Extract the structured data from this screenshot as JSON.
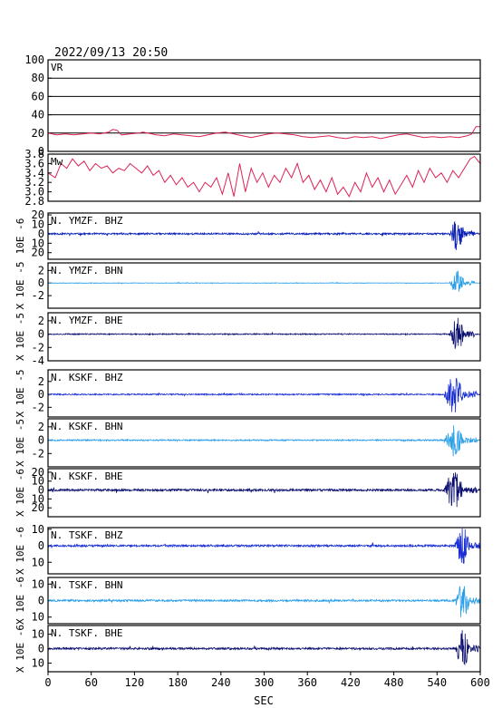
{
  "title": "2022/09/13 20:50",
  "xlabel": "SEC",
  "chart_data": {
    "type": "line",
    "xlim": [
      0,
      600
    ],
    "xticks": [
      0,
      60,
      120,
      180,
      240,
      300,
      360,
      420,
      480,
      540,
      600
    ],
    "panels": [
      {
        "id": "vr",
        "kind": "metric",
        "label": "VR",
        "ylabel": "",
        "ylim": [
          0,
          100
        ],
        "yticks": [
          0,
          20,
          40,
          60,
          80,
          100
        ],
        "grid": true,
        "color": "#dd2255",
        "series": [
          [
            0,
            20
          ],
          [
            12,
            18
          ],
          [
            24,
            19
          ],
          [
            36,
            18
          ],
          [
            48,
            19
          ],
          [
            60,
            20
          ],
          [
            72,
            19
          ],
          [
            84,
            21
          ],
          [
            90,
            24
          ],
          [
            96,
            23
          ],
          [
            102,
            18
          ],
          [
            114,
            19
          ],
          [
            126,
            20
          ],
          [
            132,
            21
          ],
          [
            138,
            20
          ],
          [
            150,
            18
          ],
          [
            162,
            17
          ],
          [
            174,
            19
          ],
          [
            186,
            18
          ],
          [
            198,
            17
          ],
          [
            210,
            16
          ],
          [
            222,
            18
          ],
          [
            234,
            20
          ],
          [
            246,
            21
          ],
          [
            258,
            19
          ],
          [
            270,
            17
          ],
          [
            282,
            15
          ],
          [
            294,
            17
          ],
          [
            306,
            19
          ],
          [
            318,
            20
          ],
          [
            330,
            19
          ],
          [
            342,
            18
          ],
          [
            354,
            16
          ],
          [
            366,
            15
          ],
          [
            378,
            16
          ],
          [
            390,
            17
          ],
          [
            402,
            15
          ],
          [
            414,
            14
          ],
          [
            426,
            16
          ],
          [
            438,
            15
          ],
          [
            450,
            16
          ],
          [
            462,
            14
          ],
          [
            474,
            16
          ],
          [
            486,
            18
          ],
          [
            498,
            19
          ],
          [
            510,
            17
          ],
          [
            522,
            15
          ],
          [
            534,
            16
          ],
          [
            546,
            15
          ],
          [
            558,
            16
          ],
          [
            570,
            15
          ],
          [
            582,
            17
          ],
          [
            588,
            19
          ],
          [
            594,
            27
          ],
          [
            600,
            27
          ]
        ]
      },
      {
        "id": "mw",
        "kind": "metric",
        "label": "Mw",
        "ylabel": "",
        "ylim": [
          2.8,
          3.8
        ],
        "yticks": [
          2.8,
          3.0,
          3.2,
          3.4,
          3.6,
          3.8
        ],
        "grid": false,
        "color": "#dd2255",
        "series": [
          [
            0,
            3.4
          ],
          [
            10,
            3.3
          ],
          [
            18,
            3.6
          ],
          [
            26,
            3.5
          ],
          [
            34,
            3.7
          ],
          [
            42,
            3.55
          ],
          [
            50,
            3.65
          ],
          [
            58,
            3.45
          ],
          [
            66,
            3.6
          ],
          [
            74,
            3.5
          ],
          [
            82,
            3.55
          ],
          [
            90,
            3.4
          ],
          [
            98,
            3.5
          ],
          [
            106,
            3.45
          ],
          [
            114,
            3.6
          ],
          [
            122,
            3.5
          ],
          [
            130,
            3.4
          ],
          [
            138,
            3.55
          ],
          [
            146,
            3.35
          ],
          [
            154,
            3.45
          ],
          [
            162,
            3.2
          ],
          [
            170,
            3.35
          ],
          [
            178,
            3.15
          ],
          [
            186,
            3.3
          ],
          [
            194,
            3.1
          ],
          [
            202,
            3.2
          ],
          [
            210,
            3.0
          ],
          [
            218,
            3.2
          ],
          [
            226,
            3.1
          ],
          [
            234,
            3.3
          ],
          [
            242,
            2.95
          ],
          [
            250,
            3.4
          ],
          [
            258,
            2.9
          ],
          [
            266,
            3.6
          ],
          [
            274,
            3.0
          ],
          [
            282,
            3.5
          ],
          [
            290,
            3.2
          ],
          [
            298,
            3.4
          ],
          [
            306,
            3.1
          ],
          [
            314,
            3.35
          ],
          [
            322,
            3.2
          ],
          [
            330,
            3.5
          ],
          [
            338,
            3.3
          ],
          [
            346,
            3.6
          ],
          [
            354,
            3.2
          ],
          [
            362,
            3.35
          ],
          [
            370,
            3.05
          ],
          [
            378,
            3.25
          ],
          [
            386,
            3.0
          ],
          [
            394,
            3.3
          ],
          [
            402,
            2.95
          ],
          [
            410,
            3.1
          ],
          [
            418,
            2.9
          ],
          [
            426,
            3.2
          ],
          [
            434,
            3.0
          ],
          [
            442,
            3.4
          ],
          [
            450,
            3.1
          ],
          [
            458,
            3.3
          ],
          [
            466,
            3.0
          ],
          [
            474,
            3.25
          ],
          [
            482,
            2.95
          ],
          [
            490,
            3.15
          ],
          [
            498,
            3.35
          ],
          [
            506,
            3.1
          ],
          [
            514,
            3.45
          ],
          [
            522,
            3.2
          ],
          [
            530,
            3.5
          ],
          [
            538,
            3.3
          ],
          [
            546,
            3.4
          ],
          [
            554,
            3.2
          ],
          [
            562,
            3.45
          ],
          [
            570,
            3.3
          ],
          [
            578,
            3.5
          ],
          [
            586,
            3.7
          ],
          [
            592,
            3.75
          ],
          [
            600,
            3.6
          ]
        ]
      },
      {
        "id": "ymzf-bhz",
        "kind": "wave",
        "label": "N. YMZF. BHZ",
        "ylabel": "10E -6",
        "ylim": [
          -27,
          22
        ],
        "yticks": [
          20,
          10,
          0,
          10,
          20
        ],
        "ytickpos": [
          20,
          10,
          0,
          -10,
          -20
        ],
        "color": "#0a1fb8",
        "noise": 0.9,
        "burst_start": 558,
        "burst_end": 592,
        "burst_amp": 20,
        "seed": 11
      },
      {
        "id": "ymzf-bhn",
        "kind": "wave",
        "label": "N. YMZF. BHN",
        "ylabel": "X 10E -5",
        "ylim": [
          -4,
          3.2
        ],
        "yticks": [
          2,
          0,
          -2
        ],
        "ytickpos": [
          2,
          0,
          -2
        ],
        "color": "#2a9fe8",
        "noise": 0.04,
        "burst_start": 558,
        "burst_end": 592,
        "burst_amp": 2.2,
        "seed": 23
      },
      {
        "id": "ymzf-bhe",
        "kind": "wave",
        "label": "N. YMZF. BHE",
        "ylabel": "X 10E -5",
        "ylim": [
          -4,
          3.2
        ],
        "yticks": [
          2,
          0,
          -2,
          -4
        ],
        "ytickpos": [
          2,
          0,
          -2,
          -4
        ],
        "color": "#0b0f6e",
        "noise": 0.08,
        "burst_start": 558,
        "burst_end": 592,
        "burst_amp": 3,
        "seed": 37
      },
      {
        "id": "kskf-bhz",
        "kind": "wave",
        "label": "N. KSKF. BHZ",
        "ylabel": "X 10E -5",
        "ylim": [
          -3.5,
          3.8
        ],
        "yticks": [
          2,
          0,
          -2
        ],
        "ytickpos": [
          2,
          0,
          -2
        ],
        "color": "#1a2fd6",
        "noise": 0.1,
        "burst_start": 550,
        "burst_end": 595,
        "burst_amp": 3.3,
        "seed": 41
      },
      {
        "id": "kskf-bhn",
        "kind": "wave",
        "label": "N. KSKF. BHN",
        "ylabel": "X 10E -5",
        "ylim": [
          -4,
          3.2
        ],
        "yticks": [
          2,
          0,
          -2
        ],
        "ytickpos": [
          2,
          0,
          -2
        ],
        "color": "#2a9fe8",
        "noise": 0.1,
        "burst_start": 550,
        "burst_end": 595,
        "burst_amp": 2.8,
        "seed": 53
      },
      {
        "id": "kskf-bhe",
        "kind": "wave",
        "label": "N. KSKF. BHE",
        "ylabel": "X 10E -6",
        "ylim": [
          -30,
          24
        ],
        "yticks": [
          20,
          10,
          0,
          10,
          20
        ],
        "ytickpos": [
          20,
          10,
          0,
          -10,
          -20
        ],
        "color": "#0b0f6e",
        "noise": 1.2,
        "burst_start": 550,
        "burst_end": 595,
        "burst_amp": 24,
        "seed": 67
      },
      {
        "id": "tskf-bhz",
        "kind": "wave",
        "label": "N. TSKF. BHZ",
        "ylabel": "X 10E -6",
        "ylim": [
          -17,
          11
        ],
        "yticks": [
          10,
          0,
          10
        ],
        "ytickpos": [
          10,
          0,
          -10
        ],
        "color": "#1a2fd6",
        "noise": 0.6,
        "burst_start": 565,
        "burst_end": 600,
        "burst_amp": 13,
        "seed": 79
      },
      {
        "id": "tskf-bhn",
        "kind": "wave",
        "label": "N. TSKF. BHN",
        "ylabel": "X 10E -6",
        "ylim": [
          -14,
          14
        ],
        "yticks": [
          10,
          0,
          10
        ],
        "ytickpos": [
          10,
          0,
          -10
        ],
        "color": "#2a9fe8",
        "noise": 0.6,
        "burst_start": 565,
        "burst_end": 600,
        "burst_amp": 13,
        "seed": 83
      },
      {
        "id": "tskf-bhe",
        "kind": "wave",
        "label": "N. TSKF. BHE",
        "ylabel": "X 10E -6",
        "ylim": [
          -16,
          16
        ],
        "yticks": [
          10,
          0,
          10
        ],
        "ytickpos": [
          10,
          0,
          -10
        ],
        "color": "#0b0f6e",
        "noise": 0.7,
        "burst_start": 565,
        "burst_end": 600,
        "burst_amp": 15,
        "seed": 97
      }
    ]
  }
}
